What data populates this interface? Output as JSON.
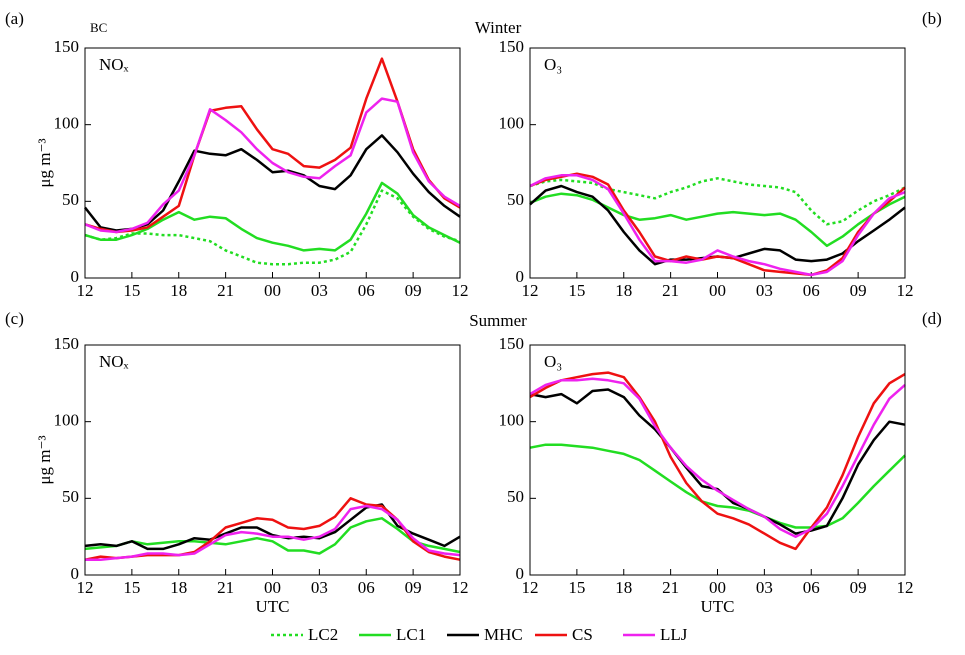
{
  "source_label": "BC",
  "row_titles": [
    "Winter",
    "Summer"
  ],
  "chart_data": [
    {
      "type": "line",
      "panel_label": "(a)",
      "annotation": "NOₓ",
      "ylabel": "μg m⁻³",
      "categories": [
        "12",
        null,
        null,
        "15",
        null,
        null,
        "18",
        null,
        null,
        "21",
        null,
        null,
        "00",
        null,
        null,
        "03",
        null,
        null,
        "06",
        null,
        null,
        "09",
        null,
        null,
        "12"
      ],
      "ylim": [
        0,
        150
      ],
      "yticks": [
        0,
        50,
        100,
        150
      ],
      "series": [
        {
          "name": "LC2",
          "color": "#22dd22",
          "style": "dotted",
          "values": [
            28,
            25,
            26,
            29,
            29,
            28,
            28,
            26,
            24,
            18,
            14,
            10,
            9,
            9,
            10,
            10,
            12,
            17,
            35,
            57,
            52,
            40,
            32,
            27,
            24
          ]
        },
        {
          "name": "LC1",
          "color": "#22dd22",
          "style": "solid",
          "values": [
            28,
            25,
            25,
            28,
            32,
            38,
            43,
            38,
            40,
            39,
            32,
            26,
            23,
            21,
            18,
            19,
            18,
            25,
            42,
            62,
            55,
            41,
            33,
            28,
            23
          ]
        },
        {
          "name": "MHC",
          "color": "#000000",
          "style": "solid",
          "values": [
            46,
            33,
            31,
            32,
            35,
            44,
            63,
            83,
            81,
            80,
            84,
            77,
            69,
            70,
            67,
            60,
            58,
            67,
            84,
            93,
            82,
            68,
            56,
            47,
            40
          ]
        },
        {
          "name": "CS",
          "color": "#ee1111",
          "style": "solid",
          "values": [
            35,
            32,
            30,
            31,
            33,
            40,
            47,
            80,
            109,
            111,
            112,
            97,
            84,
            81,
            73,
            72,
            77,
            85,
            117,
            143,
            115,
            84,
            64,
            52,
            46
          ]
        },
        {
          "name": "LLJ",
          "color": "#ee22ee",
          "style": "solid",
          "values": [
            35,
            31,
            30,
            32,
            36,
            48,
            57,
            80,
            110,
            103,
            95,
            84,
            75,
            69,
            66,
            65,
            73,
            80,
            108,
            117,
            115,
            82,
            63,
            53,
            47
          ]
        }
      ]
    },
    {
      "type": "line",
      "panel_label": "(b)",
      "annotation": "O₃",
      "categories": [
        "12",
        null,
        null,
        "15",
        null,
        null,
        "18",
        null,
        null,
        "21",
        null,
        null,
        "00",
        null,
        null,
        "03",
        null,
        null,
        "06",
        null,
        null,
        "09",
        null,
        null,
        "12"
      ],
      "ylim": [
        0,
        150
      ],
      "yticks": [
        0,
        50,
        100,
        150
      ],
      "series": [
        {
          "name": "LC2",
          "color": "#22dd22",
          "style": "dotted",
          "values": [
            60,
            63,
            64,
            63,
            62,
            58,
            56,
            54,
            52,
            56,
            59,
            63,
            65,
            63,
            61,
            60,
            59,
            56,
            44,
            35,
            37,
            44,
            50,
            54,
            59
          ]
        },
        {
          "name": "LC1",
          "color": "#22dd22",
          "style": "solid",
          "values": [
            49,
            53,
            55,
            54,
            51,
            46,
            41,
            38,
            39,
            41,
            38,
            40,
            42,
            43,
            42,
            41,
            42,
            38,
            30,
            21,
            27,
            35,
            42,
            48,
            53
          ]
        },
        {
          "name": "MHC",
          "color": "#000000",
          "style": "solid",
          "values": [
            48,
            57,
            60,
            56,
            53,
            44,
            30,
            18,
            9,
            12,
            12,
            13,
            14,
            13,
            16,
            19,
            18,
            12,
            11,
            12,
            16,
            24,
            31,
            38,
            46
          ]
        },
        {
          "name": "CS",
          "color": "#ee1111",
          "style": "solid",
          "values": [
            60,
            64,
            66,
            68,
            66,
            61,
            44,
            30,
            14,
            11,
            14,
            12,
            14,
            13,
            9,
            5,
            4,
            3,
            2,
            5,
            13,
            30,
            42,
            50,
            59
          ]
        },
        {
          "name": "LLJ",
          "color": "#ee22ee",
          "style": "solid",
          "values": [
            60,
            65,
            67,
            67,
            64,
            58,
            42,
            25,
            11,
            11,
            10,
            12,
            18,
            14,
            11,
            9,
            6,
            4,
            2,
            4,
            11,
            28,
            42,
            52,
            56
          ]
        }
      ]
    },
    {
      "type": "line",
      "panel_label": "(c)",
      "annotation": "NOₓ",
      "ylabel": "μg m⁻³",
      "xlabel": "UTC",
      "categories": [
        "12",
        null,
        null,
        "15",
        null,
        null,
        "18",
        null,
        null,
        "21",
        null,
        null,
        "00",
        null,
        null,
        "03",
        null,
        null,
        "06",
        null,
        null,
        "09",
        null,
        null,
        "12"
      ],
      "ylim": [
        0,
        150
      ],
      "yticks": [
        0,
        50,
        100,
        150
      ],
      "series": [
        {
          "name": "LC1",
          "color": "#22dd22",
          "style": "solid",
          "values": [
            17,
            18,
            19,
            22,
            20,
            21,
            22,
            22,
            21,
            20,
            22,
            24,
            22,
            16,
            16,
            14,
            20,
            31,
            35,
            37,
            30,
            22,
            19,
            17,
            15
          ]
        },
        {
          "name": "MHC",
          "color": "#000000",
          "style": "solid",
          "values": [
            19,
            20,
            19,
            22,
            17,
            17,
            20,
            24,
            23,
            27,
            31,
            31,
            26,
            24,
            25,
            24,
            28,
            36,
            44,
            46,
            32,
            27,
            23,
            19,
            25
          ]
        },
        {
          "name": "CS",
          "color": "#ee1111",
          "style": "solid",
          "values": [
            10,
            12,
            11,
            12,
            13,
            13,
            13,
            15,
            22,
            31,
            34,
            37,
            36,
            31,
            30,
            32,
            38,
            50,
            46,
            45,
            36,
            22,
            15,
            12,
            10
          ]
        },
        {
          "name": "LLJ",
          "color": "#ee22ee",
          "style": "solid",
          "values": [
            10,
            10,
            11,
            12,
            14,
            14,
            13,
            14,
            20,
            26,
            28,
            27,
            25,
            25,
            23,
            25,
            30,
            43,
            45,
            43,
            36,
            24,
            16,
            14,
            13
          ]
        }
      ]
    },
    {
      "type": "line",
      "panel_label": "(d)",
      "annotation": "O₃",
      "xlabel": "UTC",
      "categories": [
        "12",
        null,
        null,
        "15",
        null,
        null,
        "18",
        null,
        null,
        "21",
        null,
        null,
        "00",
        null,
        null,
        "03",
        null,
        null,
        "06",
        null,
        null,
        "09",
        null,
        null,
        "12"
      ],
      "ylim": [
        0,
        150
      ],
      "yticks": [
        0,
        50,
        100,
        150
      ],
      "series": [
        {
          "name": "LC1",
          "color": "#22dd22",
          "style": "solid",
          "values": [
            83,
            85,
            85,
            84,
            83,
            81,
            79,
            75,
            68,
            61,
            54,
            48,
            45,
            44,
            42,
            38,
            34,
            31,
            31,
            32,
            37,
            47,
            58,
            68,
            78
          ]
        },
        {
          "name": "MHC",
          "color": "#000000",
          "style": "solid",
          "values": [
            118,
            116,
            118,
            112,
            120,
            121,
            116,
            104,
            95,
            83,
            70,
            58,
            56,
            47,
            43,
            38,
            33,
            27,
            29,
            32,
            50,
            72,
            88,
            100,
            98
          ]
        },
        {
          "name": "CS",
          "color": "#ee1111",
          "style": "solid",
          "values": [
            116,
            122,
            127,
            129,
            131,
            132,
            129,
            116,
            100,
            77,
            60,
            48,
            40,
            37,
            33,
            27,
            21,
            17,
            31,
            44,
            65,
            90,
            112,
            125,
            131
          ]
        },
        {
          "name": "LLJ",
          "color": "#ee22ee",
          "style": "solid",
          "values": [
            118,
            124,
            127,
            127,
            128,
            127,
            125,
            115,
            97,
            83,
            71,
            62,
            55,
            49,
            43,
            38,
            30,
            25,
            30,
            40,
            58,
            78,
            98,
            115,
            124
          ]
        }
      ]
    }
  ]
}
